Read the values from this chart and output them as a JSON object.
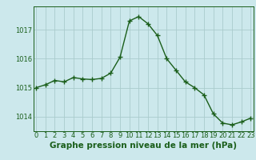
{
  "hours": [
    0,
    1,
    2,
    3,
    4,
    5,
    6,
    7,
    8,
    9,
    10,
    11,
    12,
    13,
    14,
    15,
    16,
    17,
    18,
    19,
    20,
    21,
    22,
    23
  ],
  "pressure": [
    1015.0,
    1015.1,
    1015.25,
    1015.2,
    1015.35,
    1015.3,
    1015.28,
    1015.32,
    1015.5,
    1016.05,
    1017.3,
    1017.45,
    1017.2,
    1016.8,
    1016.0,
    1015.6,
    1015.2,
    1015.0,
    1014.75,
    1014.1,
    1013.78,
    1013.72,
    1013.82,
    1013.95
  ],
  "line_color": "#1a5e1a",
  "marker_color": "#1a5e1a",
  "bg_color": "#cce8ec",
  "grid_color": "#aacccc",
  "text_color": "#1a5e1a",
  "xlabel": "Graphe pression niveau de la mer (hPa)",
  "ylim_min": 1013.5,
  "ylim_max": 1017.8,
  "yticks": [
    1014,
    1015,
    1016,
    1017
  ],
  "xticks": [
    0,
    1,
    2,
    3,
    4,
    5,
    6,
    7,
    8,
    9,
    10,
    11,
    12,
    13,
    14,
    15,
    16,
    17,
    18,
    19,
    20,
    21,
    22,
    23
  ],
  "marker_size": 2.5,
  "line_width": 1.0,
  "tick_fontsize": 6,
  "xlabel_fontsize": 7.5
}
